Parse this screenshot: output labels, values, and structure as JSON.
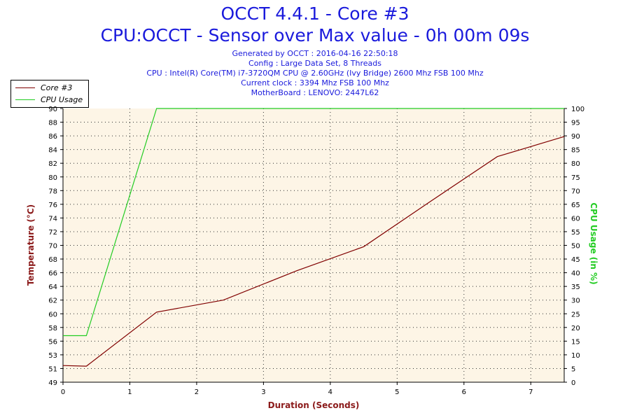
{
  "header": {
    "title": "OCCT 4.4.1 - Core #3",
    "subtitle": "CPU:OCCT - Sensor over Max value - 0h 00m 09s",
    "info": [
      "Generated by OCCT : 2016-04-16 22:50:18",
      "Config : Large Data Set, 8 Threads",
      "CPU : Intel(R) Core(TM) i7-3720QM CPU @ 2.60GHz (Ivy Bridge) 2600 Mhz FSB 100 Mhz",
      "Current clock : 3394 Mhz FSB 100 Mhz",
      "MotherBoard : LENOVO: 2447L62"
    ]
  },
  "legend": [
    {
      "label": "Core #3",
      "color": "#800000"
    },
    {
      "label": "CPU Usage",
      "color": "#22cc22"
    }
  ],
  "chart_data": {
    "type": "line",
    "xlabel": "Duration (Seconds)",
    "ylabel_left": "Temperature (°C)",
    "ylabel_right": "CPU Usage (in %)",
    "xlim": [
      0,
      7.5
    ],
    "ylim_left": [
      49,
      90
    ],
    "ylim_right": [
      0,
      100
    ],
    "x_ticks": [
      "0",
      "1",
      "2",
      "3",
      "4",
      "5",
      "6",
      "7"
    ],
    "y_left_ticks": [
      "49",
      "51",
      "53",
      "56",
      "58",
      "60",
      "62",
      "64",
      "66",
      "68",
      "70",
      "72",
      "74",
      "76",
      "78",
      "80",
      "82",
      "84",
      "86",
      "88",
      "90"
    ],
    "y_right_ticks": [
      "0",
      "5",
      "10",
      "15",
      "20",
      "25",
      "30",
      "35",
      "40",
      "45",
      "50",
      "55",
      "60",
      "65",
      "70",
      "75",
      "80",
      "85",
      "90",
      "95",
      "100"
    ],
    "grid": true,
    "legend_position": "top-left",
    "series": [
      {
        "name": "Core #3",
        "axis": "left",
        "color": "#800000",
        "x": [
          0,
          0.35,
          1.4,
          2.4,
          3.5,
          4.5,
          5.5,
          6.5,
          7.5
        ],
        "y": [
          51.5,
          51.4,
          59.5,
          61.3,
          65.7,
          69.3,
          76.1,
          82.8,
          85.8
        ]
      },
      {
        "name": "CPU Usage",
        "axis": "right",
        "color": "#22cc22",
        "x": [
          0,
          0.35,
          1.4,
          7.5
        ],
        "y": [
          17,
          17,
          100,
          100
        ]
      }
    ]
  }
}
